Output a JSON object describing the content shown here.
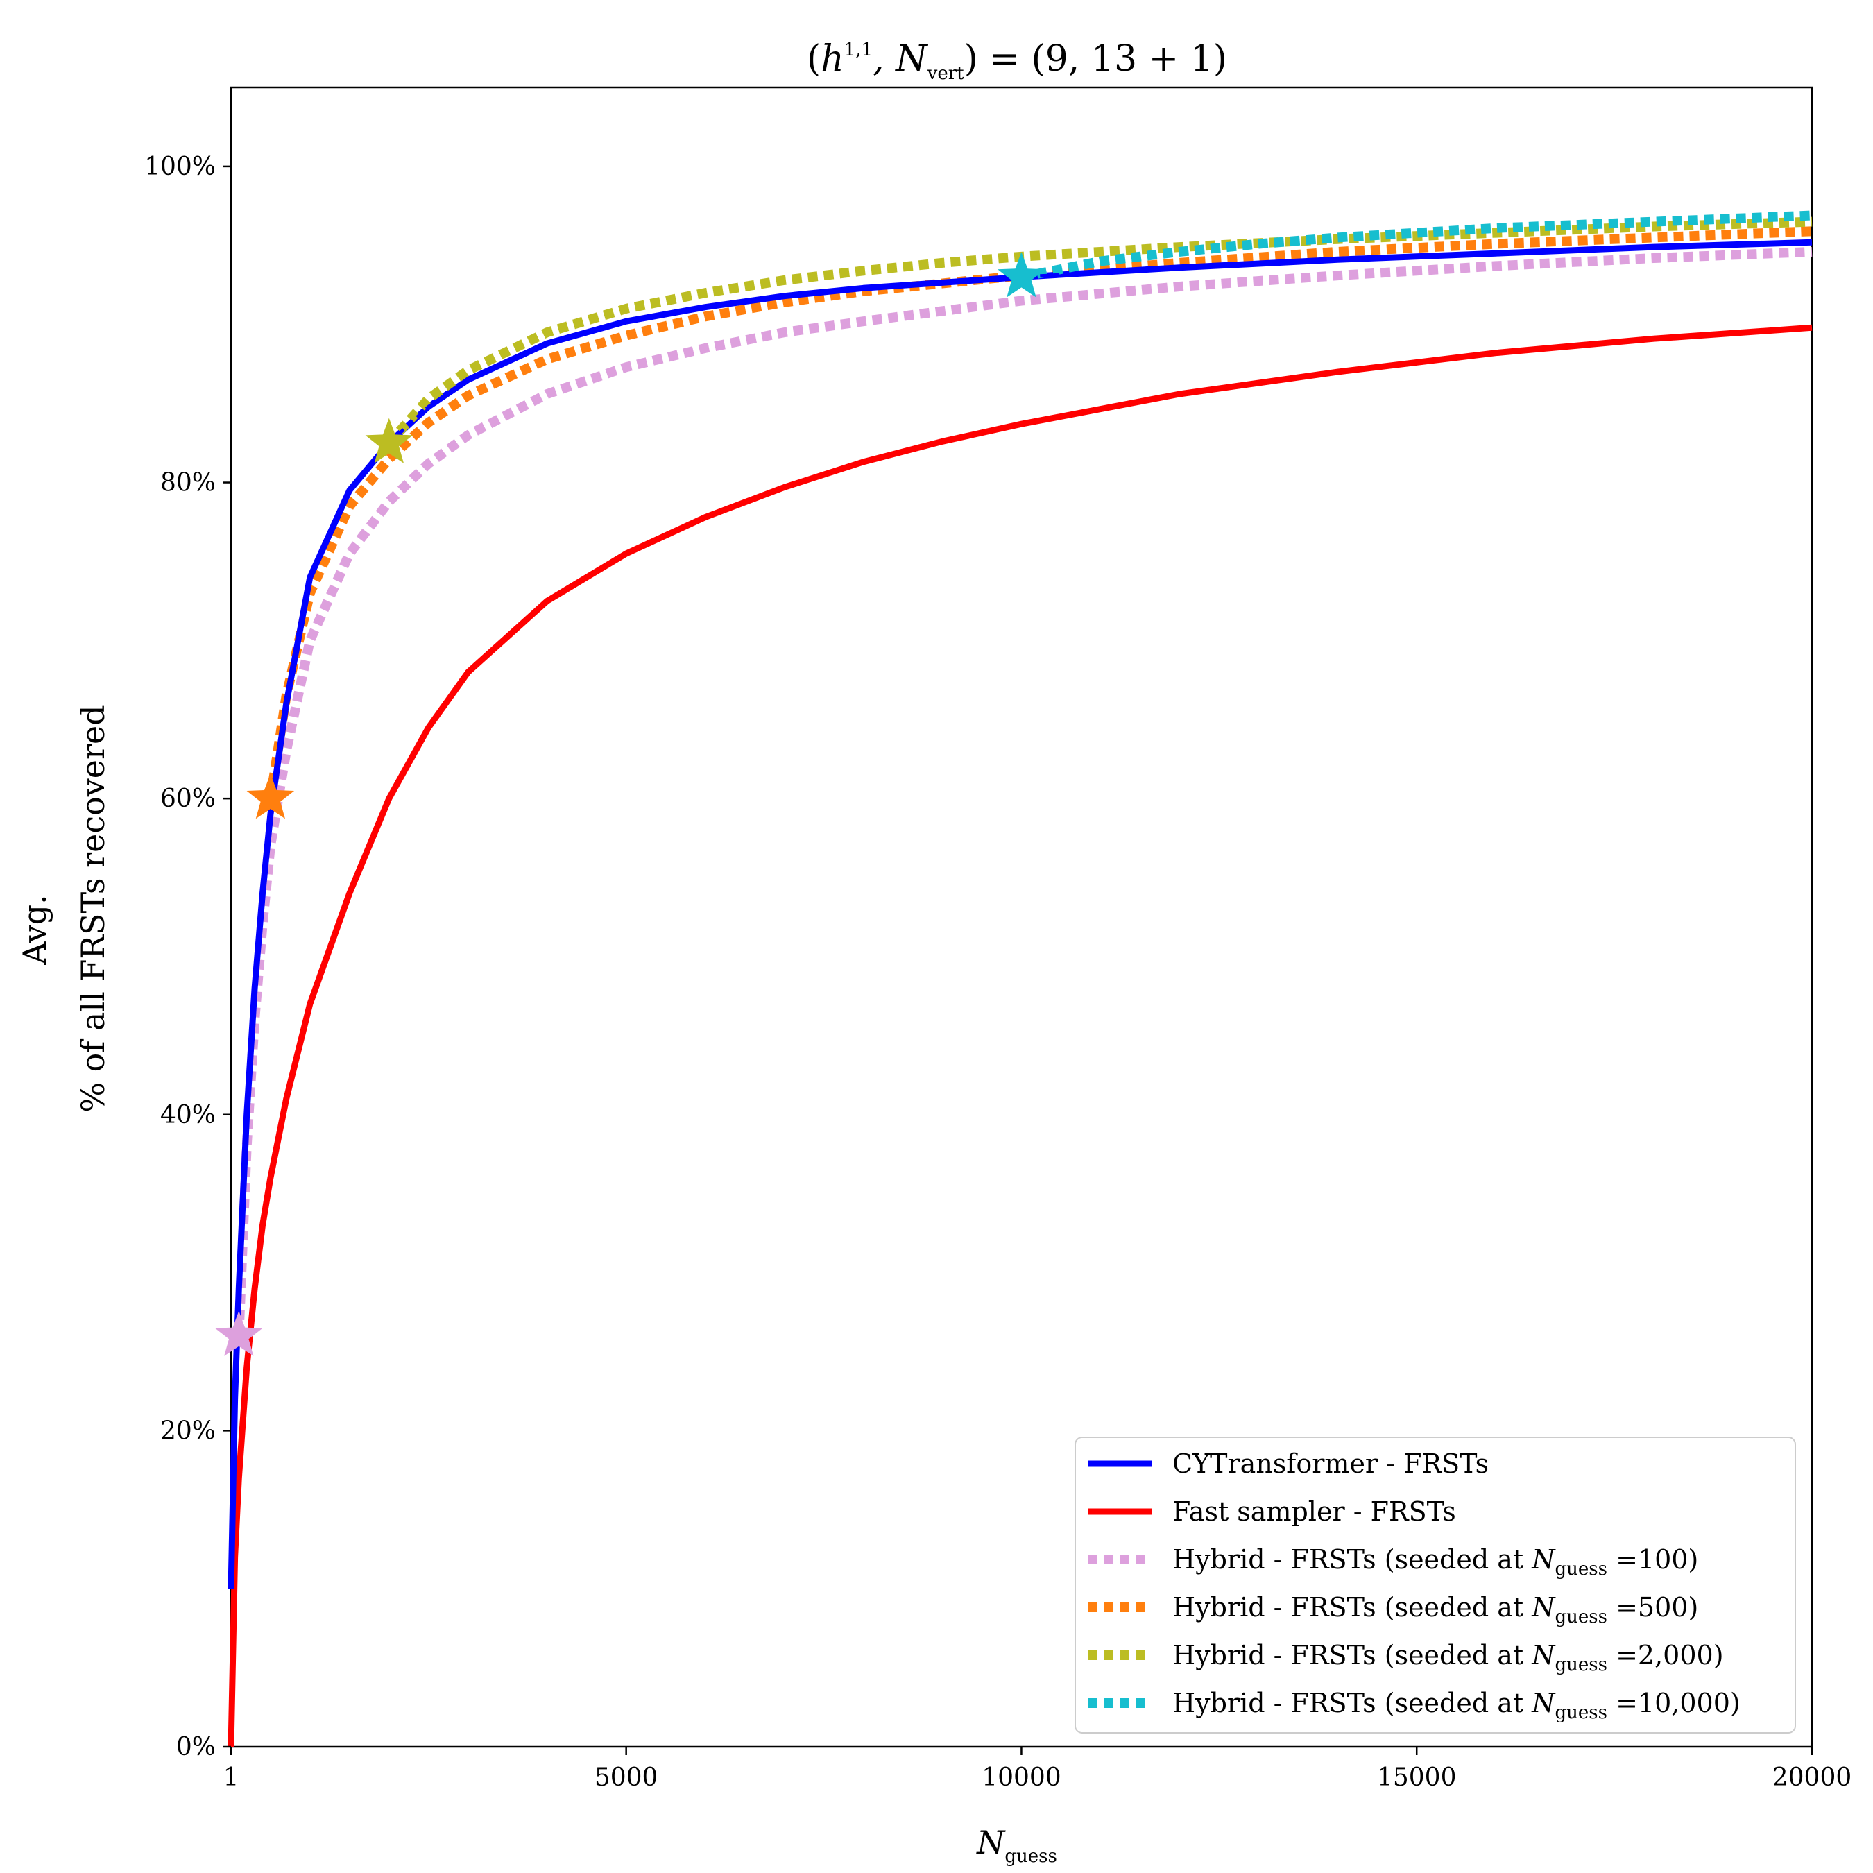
{
  "chart_data": {
    "type": "line",
    "title_parts": {
      "open": "(",
      "h": "h",
      "h_sup": "1,1",
      "comma": ", N",
      "n_sub": "vert",
      "close": ") = (9, 13 + 1)"
    },
    "xlabel": "N",
    "xlabel_sub": "guess",
    "ylabel_line1": "Avg.",
    "ylabel_line2": "% of all FRSTs recovered",
    "xlim": [
      1,
      20000
    ],
    "ylim": [
      0,
      105
    ],
    "x_ticks": [
      1,
      5000,
      10000,
      15000,
      20000
    ],
    "x_tick_labels": [
      "1",
      "5000",
      "10000",
      "15000",
      "20000"
    ],
    "y_ticks": [
      0,
      20,
      40,
      60,
      80,
      100
    ],
    "y_tick_labels": [
      "0%",
      "20%",
      "40%",
      "60%",
      "80%",
      "100%"
    ],
    "series": [
      {
        "name": "CYTransformer - FRSTs",
        "color": "#0000ff",
        "style": "solid",
        "x": [
          1,
          50,
          100,
          200,
          300,
          400,
          500,
          700,
          1000,
          1500,
          2000,
          2500,
          3000,
          4000,
          5000,
          6000,
          7000,
          8000,
          10000,
          12000,
          14000,
          16000,
          18000,
          20000
        ],
        "y": [
          10,
          22,
          29,
          40,
          48,
          54,
          59,
          66,
          74,
          79.5,
          82.5,
          84.8,
          86.5,
          88.8,
          90.2,
          91.1,
          91.8,
          92.3,
          93,
          93.6,
          94.1,
          94.5,
          94.9,
          95.2
        ]
      },
      {
        "name": "Fast sampler - FRSTs",
        "color": "#ff0000",
        "style": "solid",
        "x": [
          1,
          50,
          100,
          200,
          300,
          400,
          500,
          700,
          1000,
          1500,
          2000,
          2500,
          3000,
          4000,
          5000,
          6000,
          7000,
          8000,
          9000,
          10000,
          12000,
          14000,
          16000,
          18000,
          20000
        ],
        "y": [
          0,
          12,
          17,
          24,
          29,
          33,
          36,
          41,
          47,
          54,
          60,
          64.5,
          68,
          72.5,
          75.5,
          77.8,
          79.7,
          81.3,
          82.6,
          83.7,
          85.6,
          87,
          88.2,
          89.1,
          89.8
        ]
      },
      {
        "name": "Hybrid - FRSTs (seeded at ",
        "label_suffix": "=100)",
        "color": "#dda0dd",
        "style": "dotted",
        "seed_x": 100,
        "seed_y": 26,
        "x": [
          100,
          200,
          300,
          400,
          500,
          700,
          1000,
          1500,
          2000,
          2500,
          3000,
          4000,
          5000,
          6000,
          7000,
          8000,
          10000,
          12000,
          14000,
          16000,
          18000,
          20000
        ],
        "y": [
          26,
          38,
          46,
          52,
          57,
          63,
          70,
          75.5,
          78.8,
          81.2,
          83,
          85.6,
          87.3,
          88.5,
          89.5,
          90.2,
          91.5,
          92.4,
          93.1,
          93.7,
          94.2,
          94.6
        ]
      },
      {
        "name": "Hybrid - FRSTs (seeded at ",
        "label_suffix": "=500)",
        "color": "#ff7f0e",
        "style": "dotted",
        "seed_x": 500,
        "seed_y": 60,
        "x": [
          500,
          700,
          1000,
          1500,
          2000,
          2500,
          3000,
          4000,
          5000,
          6000,
          7000,
          8000,
          10000,
          12000,
          14000,
          16000,
          18000,
          20000
        ],
        "y": [
          60,
          66.5,
          73,
          78.5,
          81.5,
          83.8,
          85.5,
          87.8,
          89.3,
          90.5,
          91.4,
          92.1,
          93.1,
          93.9,
          94.6,
          95.1,
          95.5,
          95.9
        ]
      },
      {
        "name": "Hybrid - FRSTs (seeded at ",
        "label_suffix": "=2,000)",
        "color": "#bcbd22",
        "style": "dotted",
        "seed_x": 2000,
        "seed_y": 82.5,
        "x": [
          2000,
          2500,
          3000,
          4000,
          5000,
          6000,
          7000,
          8000,
          9000,
          10000,
          12000,
          14000,
          16000,
          18000,
          20000
        ],
        "y": [
          82.5,
          85.3,
          87.1,
          89.5,
          91,
          92,
          92.8,
          93.4,
          93.9,
          94.3,
          94.9,
          95.4,
          95.8,
          96.2,
          96.5
        ]
      },
      {
        "name": "Hybrid - FRSTs (seeded at ",
        "label_suffix": "=10,000)",
        "color": "#17becf",
        "style": "dotted",
        "seed_x": 10000,
        "seed_y": 93,
        "x": [
          10000,
          11000,
          12000,
          13000,
          14000,
          15000,
          16000,
          17000,
          18000,
          19000,
          20000
        ],
        "y": [
          93,
          94,
          94.6,
          95.1,
          95.5,
          95.8,
          96.1,
          96.3,
          96.5,
          96.7,
          96.9
        ]
      }
    ],
    "legend_position": "lower-right",
    "legend_var": "N",
    "legend_var_sub": "guess"
  }
}
